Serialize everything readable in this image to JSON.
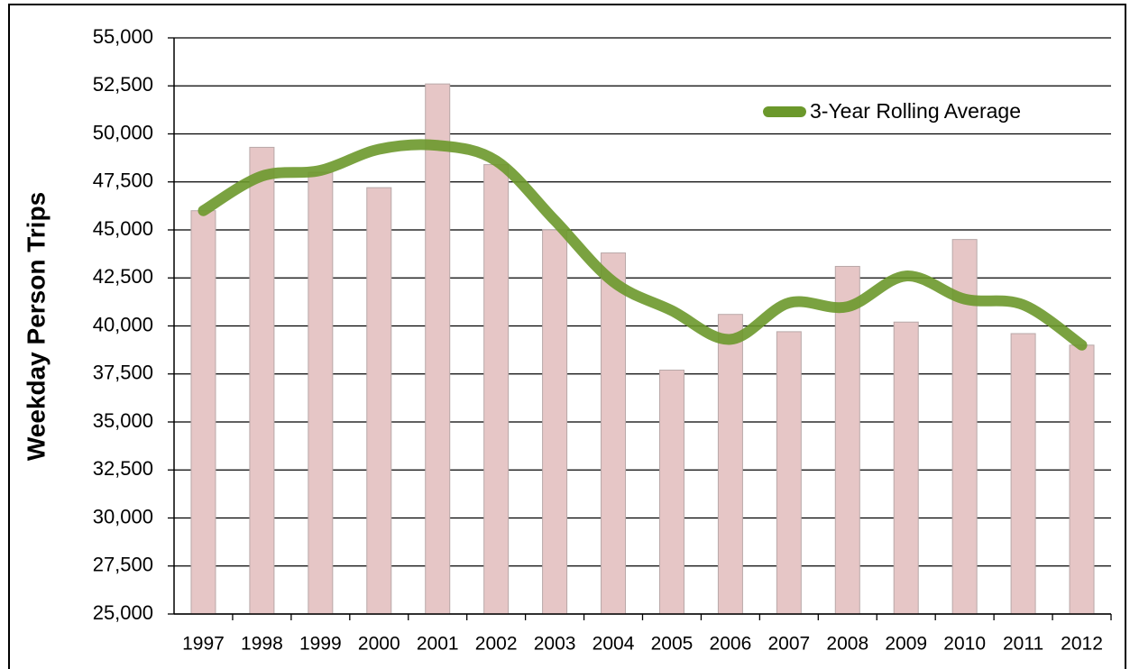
{
  "chart_data": {
    "type": "bar",
    "y_label": "Weekday Person Trips",
    "categories": [
      "1997",
      "1998",
      "1999",
      "2000",
      "2001",
      "2002",
      "2003",
      "2004",
      "2005",
      "2006",
      "2007",
      "2008",
      "2009",
      "2010",
      "2011",
      "2012"
    ],
    "series": [
      {
        "type": "bar",
        "color": "#e6c6c6",
        "values": [
          46000,
          49300,
          48000,
          47200,
          52600,
          48400,
          45000,
          43800,
          37700,
          40600,
          39700,
          43100,
          40200,
          44500,
          39600,
          39000
        ]
      },
      {
        "type": "line",
        "name": "3-Year Rolling Average",
        "color": "#6b982b",
        "values": [
          46000,
          47800,
          48100,
          49200,
          49400,
          48600,
          45500,
          42300,
          40800,
          39300,
          41200,
          41000,
          42600,
          41400,
          41100,
          39000
        ]
      }
    ],
    "ylim": [
      25000,
      55000
    ],
    "yticks": [
      {
        "value": 25000,
        "label": "25,000"
      },
      {
        "value": 27500,
        "label": "27,500"
      },
      {
        "value": 30000,
        "label": "30,000"
      },
      {
        "value": 32500,
        "label": "32,500"
      },
      {
        "value": 35000,
        "label": "35,000"
      },
      {
        "value": 37500,
        "label": "37,500"
      },
      {
        "value": 40000,
        "label": "40,000"
      },
      {
        "value": 42500,
        "label": "42,500"
      },
      {
        "value": 45000,
        "label": "45,000"
      },
      {
        "value": 47500,
        "label": "47,500"
      },
      {
        "value": 50000,
        "label": "50,000"
      },
      {
        "value": 52500,
        "label": "52,500"
      },
      {
        "value": 55000,
        "label": "55,000"
      }
    ],
    "grid": true,
    "legend": "upper right"
  }
}
